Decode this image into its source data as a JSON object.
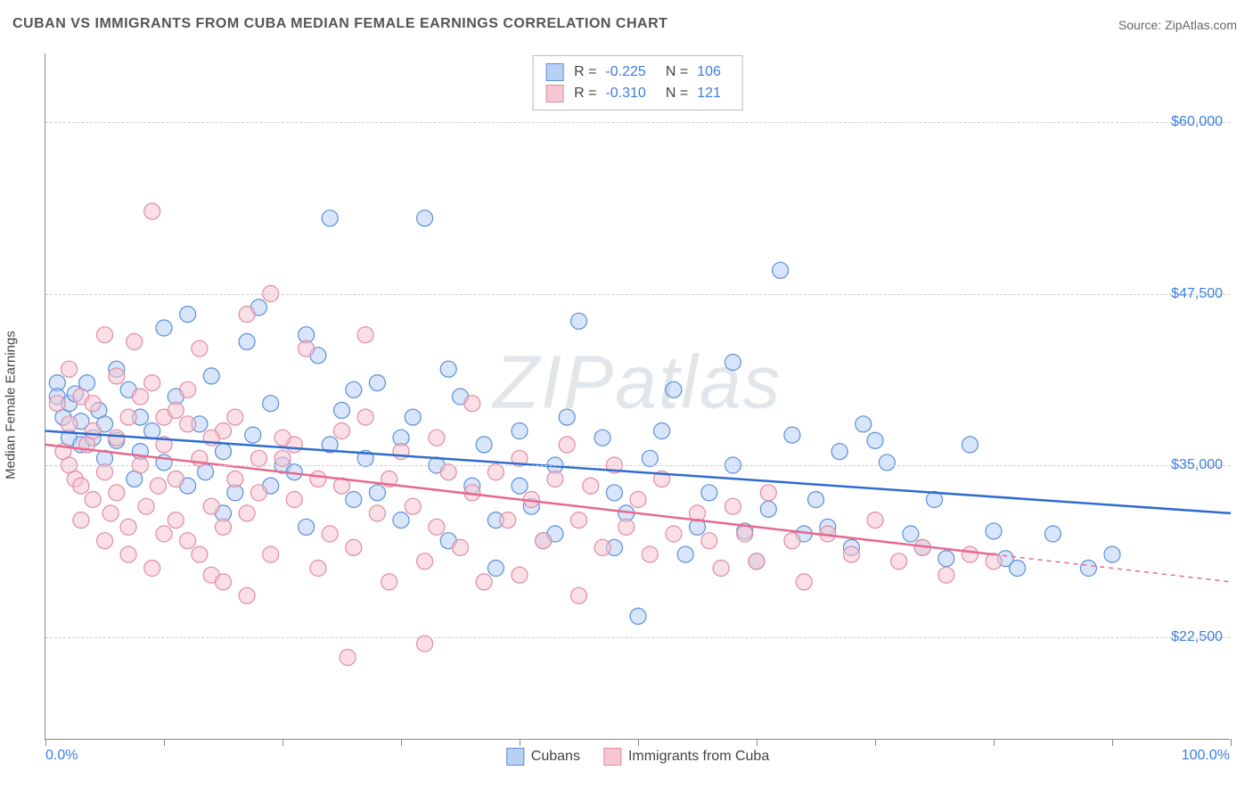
{
  "title": "CUBAN VS IMMIGRANTS FROM CUBA MEDIAN FEMALE EARNINGS CORRELATION CHART",
  "source": "Source: ZipAtlas.com",
  "watermark": "ZIPatlas",
  "y_axis_title": "Median Female Earnings",
  "chart": {
    "type": "scatter",
    "xlim": [
      0,
      100
    ],
    "ylim": [
      15000,
      65000
    ],
    "x_ticks": [
      0,
      10,
      20,
      30,
      40,
      50,
      60,
      70,
      80,
      90,
      100
    ],
    "y_gridlines": [
      22500,
      35000,
      47500,
      60000
    ],
    "y_tick_labels": [
      "$22,500",
      "$35,000",
      "$47,500",
      "$60,000"
    ],
    "x_label_min": "0.0%",
    "x_label_max": "100.0%",
    "background_color": "#ffffff",
    "grid_color": "#cccccc",
    "axis_color": "#888888",
    "ytick_color": "#3b7de0",
    "marker_radius": 9,
    "marker_opacity": 0.55,
    "line_width": 2.5
  },
  "series": [
    {
      "name": "Cubans",
      "color_fill": "#b9d0f5",
      "color_stroke": "#5a8fd8",
      "line_color": "#2f6cd0",
      "R": "-0.225",
      "N": "106",
      "trend": {
        "y_at_x0": 37500,
        "y_at_x100": 31500,
        "x_data_max": 100
      },
      "points": [
        [
          1,
          41000
        ],
        [
          1,
          40000
        ],
        [
          1.5,
          38500
        ],
        [
          2,
          39500
        ],
        [
          2,
          37000
        ],
        [
          2.5,
          40200
        ],
        [
          3,
          38200
        ],
        [
          3,
          36500
        ],
        [
          3.5,
          41000
        ],
        [
          4,
          37000
        ],
        [
          4.5,
          39000
        ],
        [
          5,
          35500
        ],
        [
          5,
          38000
        ],
        [
          6,
          42000
        ],
        [
          6,
          36800
        ],
        [
          7,
          40500
        ],
        [
          7.5,
          34000
        ],
        [
          8,
          38500
        ],
        [
          8,
          36000
        ],
        [
          9,
          37500
        ],
        [
          10,
          35200
        ],
        [
          10,
          45000
        ],
        [
          11,
          40000
        ],
        [
          12,
          33500
        ],
        [
          12,
          46000
        ],
        [
          13,
          38000
        ],
        [
          13.5,
          34500
        ],
        [
          14,
          41500
        ],
        [
          15,
          36000
        ],
        [
          15,
          31500
        ],
        [
          16,
          33000
        ],
        [
          17,
          44000
        ],
        [
          17.5,
          37200
        ],
        [
          18,
          46500
        ],
        [
          19,
          39500
        ],
        [
          19,
          33500
        ],
        [
          20,
          35000
        ],
        [
          21,
          34500
        ],
        [
          22,
          44500
        ],
        [
          22,
          30500
        ],
        [
          23,
          43000
        ],
        [
          24,
          36500
        ],
        [
          24,
          53000
        ],
        [
          25,
          39000
        ],
        [
          26,
          40500
        ],
        [
          26,
          32500
        ],
        [
          27,
          35500
        ],
        [
          28,
          41000
        ],
        [
          28,
          33000
        ],
        [
          30,
          37000
        ],
        [
          30,
          31000
        ],
        [
          31,
          38500
        ],
        [
          32,
          53000
        ],
        [
          33,
          35000
        ],
        [
          34,
          42000
        ],
        [
          34,
          29500
        ],
        [
          35,
          40000
        ],
        [
          36,
          33500
        ],
        [
          37,
          36500
        ],
        [
          38,
          31000
        ],
        [
          38,
          27500
        ],
        [
          40,
          37500
        ],
        [
          40,
          33500
        ],
        [
          41,
          32000
        ],
        [
          42,
          29500
        ],
        [
          43,
          35000
        ],
        [
          43,
          30000
        ],
        [
          44,
          38500
        ],
        [
          45,
          45500
        ],
        [
          47,
          37000
        ],
        [
          48,
          33000
        ],
        [
          48,
          29000
        ],
        [
          49,
          31500
        ],
        [
          50,
          24000
        ],
        [
          51,
          35500
        ],
        [
          52,
          37500
        ],
        [
          53,
          40500
        ],
        [
          54,
          28500
        ],
        [
          55,
          30500
        ],
        [
          56,
          33000
        ],
        [
          58,
          35000
        ],
        [
          58,
          42500
        ],
        [
          59,
          30200
        ],
        [
          60,
          28000
        ],
        [
          61,
          31800
        ],
        [
          62,
          49200
        ],
        [
          63,
          37200
        ],
        [
          64,
          30000
        ],
        [
          65,
          32500
        ],
        [
          66,
          30500
        ],
        [
          67,
          36000
        ],
        [
          68,
          29000
        ],
        [
          69,
          38000
        ],
        [
          70,
          36800
        ],
        [
          71,
          35200
        ],
        [
          73,
          30000
        ],
        [
          74,
          29000
        ],
        [
          75,
          32500
        ],
        [
          76,
          28200
        ],
        [
          78,
          36500
        ],
        [
          80,
          30200
        ],
        [
          81,
          28200
        ],
        [
          82,
          27500
        ],
        [
          85,
          30000
        ],
        [
          88,
          27500
        ],
        [
          90,
          28500
        ]
      ]
    },
    {
      "name": "Immigrants from Cuba",
      "color_fill": "#f6c6d2",
      "color_stroke": "#e08ba4",
      "line_color": "#e76a8e",
      "R": "-0.310",
      "N": "121",
      "trend": {
        "y_at_x0": 36500,
        "y_at_x100": 26500,
        "x_data_max": 80
      },
      "points": [
        [
          1,
          39500
        ],
        [
          1.5,
          36000
        ],
        [
          2,
          38000
        ],
        [
          2,
          35000
        ],
        [
          2.5,
          34000
        ],
        [
          3,
          40000
        ],
        [
          3,
          33500
        ],
        [
          3.5,
          36500
        ],
        [
          4,
          32500
        ],
        [
          4,
          37500
        ],
        [
          5,
          44500
        ],
        [
          5,
          34500
        ],
        [
          5.5,
          31500
        ],
        [
          6,
          37000
        ],
        [
          6,
          33000
        ],
        [
          7,
          38500
        ],
        [
          7,
          30500
        ],
        [
          7.5,
          44000
        ],
        [
          8,
          35000
        ],
        [
          8.5,
          32000
        ],
        [
          9,
          41000
        ],
        [
          9,
          53500
        ],
        [
          9.5,
          33500
        ],
        [
          10,
          36500
        ],
        [
          10,
          30000
        ],
        [
          11,
          34000
        ],
        [
          11,
          31000
        ],
        [
          12,
          38000
        ],
        [
          12,
          29500
        ],
        [
          13,
          43500
        ],
        [
          13,
          35500
        ],
        [
          14,
          32000
        ],
        [
          14,
          27000
        ],
        [
          15,
          37500
        ],
        [
          15,
          30500
        ],
        [
          16,
          34000
        ],
        [
          17,
          46000
        ],
        [
          17,
          31500
        ],
        [
          18,
          33000
        ],
        [
          19,
          47500
        ],
        [
          19,
          28500
        ],
        [
          20,
          35500
        ],
        [
          21,
          36500
        ],
        [
          21,
          32500
        ],
        [
          22,
          43500
        ],
        [
          23,
          34000
        ],
        [
          23,
          27500
        ],
        [
          24,
          30000
        ],
        [
          25,
          37500
        ],
        [
          25,
          33500
        ],
        [
          25.5,
          21000
        ],
        [
          26,
          29000
        ],
        [
          27,
          38500
        ],
        [
          27,
          44500
        ],
        [
          28,
          31500
        ],
        [
          29,
          34000
        ],
        [
          29,
          26500
        ],
        [
          30,
          36000
        ],
        [
          31,
          32000
        ],
        [
          32,
          28000
        ],
        [
          32,
          22000
        ],
        [
          33,
          37000
        ],
        [
          33,
          30500
        ],
        [
          34,
          34500
        ],
        [
          35,
          29000
        ],
        [
          36,
          39500
        ],
        [
          36,
          33000
        ],
        [
          37,
          26500
        ],
        [
          38,
          34500
        ],
        [
          39,
          31000
        ],
        [
          40,
          35500
        ],
        [
          40,
          27000
        ],
        [
          41,
          32500
        ],
        [
          42,
          29500
        ],
        [
          43,
          34000
        ],
        [
          44,
          36500
        ],
        [
          45,
          31000
        ],
        [
          45,
          25500
        ],
        [
          46,
          33500
        ],
        [
          47,
          29000
        ],
        [
          48,
          35000
        ],
        [
          49,
          30500
        ],
        [
          50,
          32500
        ],
        [
          51,
          28500
        ],
        [
          52,
          34000
        ],
        [
          53,
          30000
        ],
        [
          55,
          31500
        ],
        [
          56,
          29500
        ],
        [
          57,
          27500
        ],
        [
          58,
          32000
        ],
        [
          59,
          30000
        ],
        [
          60,
          28000
        ],
        [
          61,
          33000
        ],
        [
          63,
          29500
        ],
        [
          64,
          26500
        ],
        [
          66,
          30000
        ],
        [
          68,
          28500
        ],
        [
          70,
          31000
        ],
        [
          72,
          28000
        ],
        [
          74,
          29000
        ],
        [
          76,
          27000
        ],
        [
          78,
          28500
        ],
        [
          80,
          28000
        ],
        [
          2,
          42000
        ],
        [
          4,
          39500
        ],
        [
          6,
          41500
        ],
        [
          8,
          40000
        ],
        [
          10,
          38500
        ],
        [
          12,
          40500
        ],
        [
          14,
          37000
        ],
        [
          16,
          38500
        ],
        [
          18,
          35500
        ],
        [
          20,
          37000
        ],
        [
          3,
          31000
        ],
        [
          5,
          29500
        ],
        [
          7,
          28500
        ],
        [
          9,
          27500
        ],
        [
          11,
          39000
        ],
        [
          13,
          28500
        ],
        [
          15,
          26500
        ],
        [
          17,
          25500
        ]
      ]
    }
  ],
  "legend_bottom": [
    {
      "label": "Cubans",
      "fill": "#b9d0f5",
      "stroke": "#5a8fd8"
    },
    {
      "label": "Immigrants from Cuba",
      "fill": "#f6c6d2",
      "stroke": "#e08ba4"
    }
  ],
  "stats_labels": {
    "R": "R =",
    "N": "N ="
  }
}
